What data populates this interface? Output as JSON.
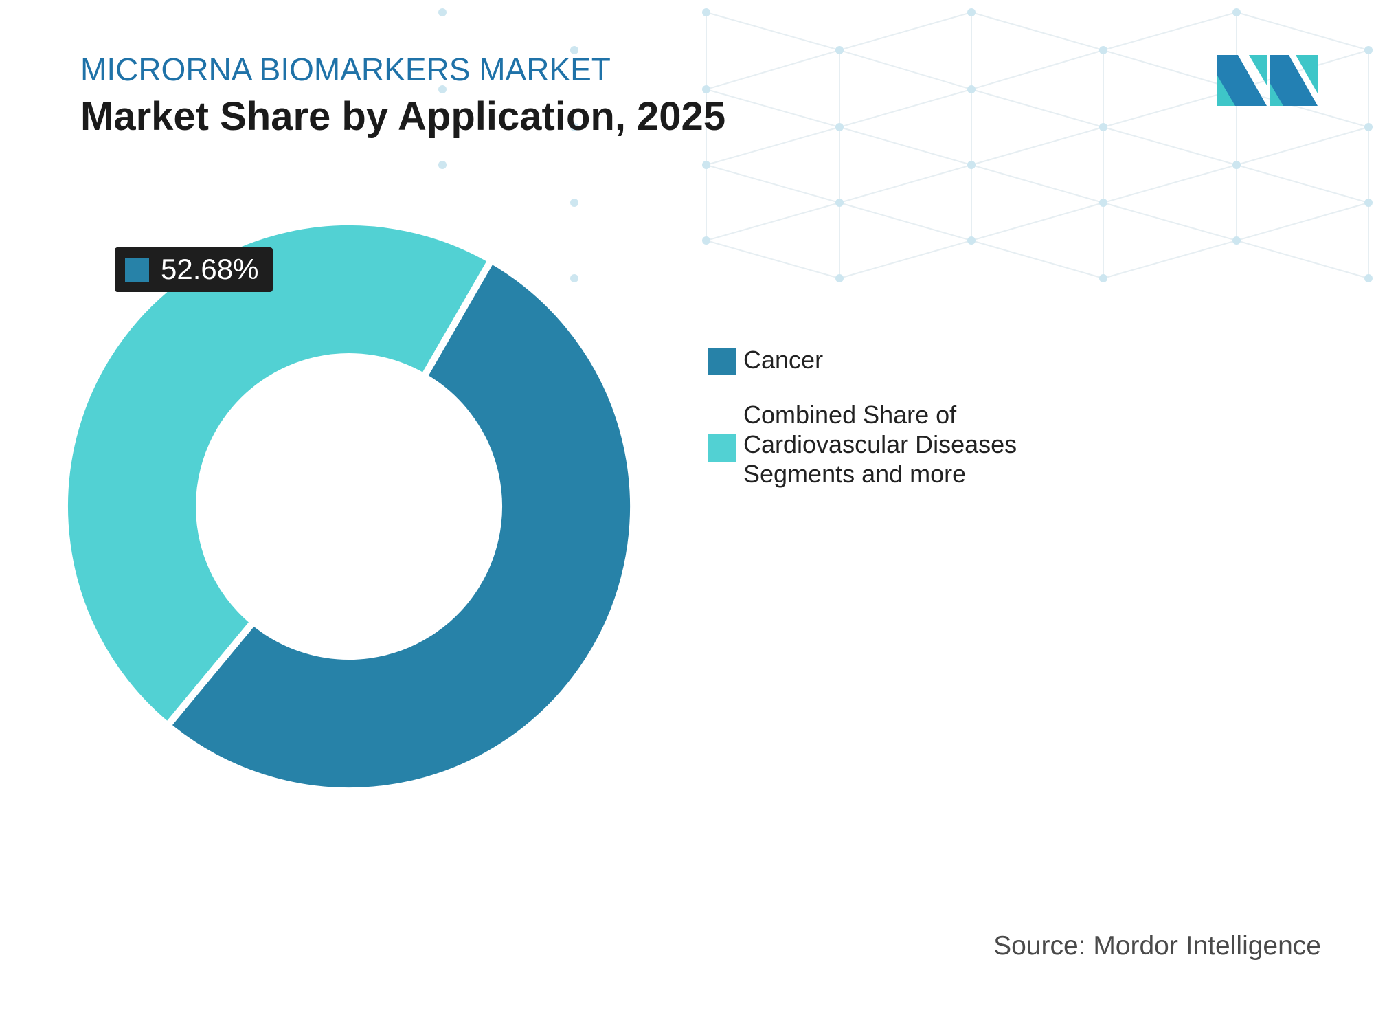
{
  "header": {
    "subtitle": "MICRORNA BIOMARKERS MARKET",
    "title": "Market Share by Application, 2025"
  },
  "logo": {
    "icon": "mordor-intelligence-logo-icon",
    "colors": [
      "#2380b3",
      "#3ec6c8"
    ]
  },
  "chart_data": {
    "type": "pie",
    "style": "donut",
    "title": "Market Share by Application, 2025",
    "slices": [
      {
        "label": "Cancer",
        "value": 52.68,
        "color": "#2782a8"
      },
      {
        "label": "Combined Share of Cardiovascular Diseases Segments and more",
        "value": 47.32,
        "color": "#52d1d3"
      }
    ],
    "callout": {
      "slice": "Cancer",
      "text": "52.68%"
    },
    "legend": {
      "placement": "right",
      "items": [
        {
          "label": "Cancer",
          "color": "#2782a8"
        },
        {
          "label": "Combined Share of Cardiovascular Diseases Segments and more",
          "color": "#52d1d3"
        }
      ]
    }
  },
  "footer": {
    "source": "Source: Mordor Intelligence"
  }
}
